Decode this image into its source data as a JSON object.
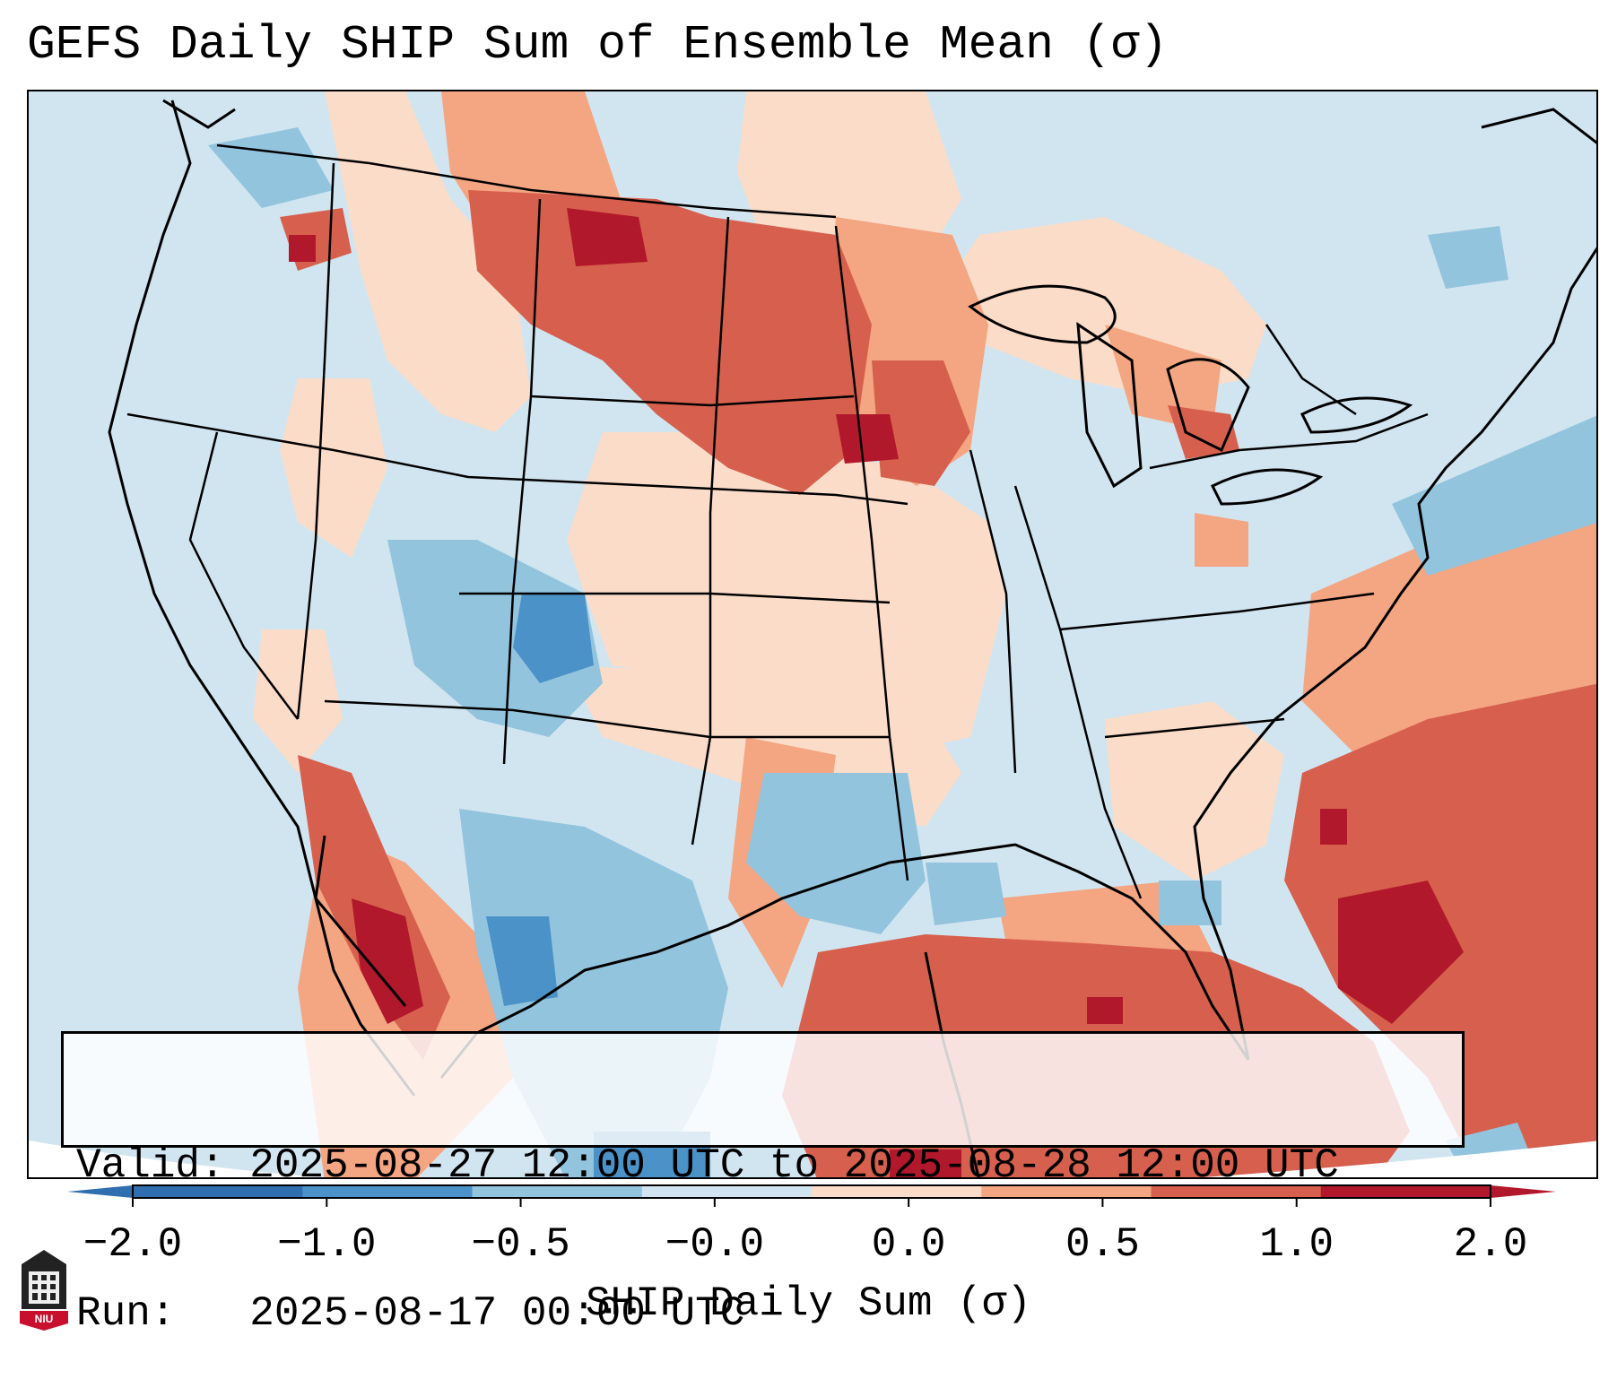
{
  "title": "GEFS Daily SHIP Sum of Ensemble Mean (σ)",
  "info": {
    "valid_line": "Valid: 2025-08-27 12:00 UTC to 2025-08-28 12:00 UTC",
    "run_line": "Run:   2025-08-17 00:00 UTC"
  },
  "colorbar": {
    "label": "SHIP Daily Sum (σ)",
    "ticks": [
      "−2.0",
      "−1.0",
      "−0.5",
      "−0.0",
      "0.0",
      "0.5",
      "1.0",
      "2.0"
    ],
    "colors": [
      "#2f6fb0",
      "#4a92c7",
      "#93c4de",
      "#d1e5f0",
      "#fbdcc8",
      "#f4a582",
      "#d6604d",
      "#b2182b"
    ]
  },
  "map_regions": {
    "strong_positive": [
      "Montana-North Dakota border",
      "Eastern South Dakota / Minnesota",
      "Gulf of Mexico",
      "Southeast Atlantic coast",
      "Gulf of California",
      "Bahamas"
    ],
    "moderate_positive": [
      "Nebraska",
      "Iowa",
      "Missouri",
      "Great Lakes",
      "Western Atlantic"
    ],
    "negative": [
      "Colorado",
      "Utah",
      "New Mexico / West Texas",
      "Northern Mexico",
      "Oklahoma / North Texas",
      "Mid-Atlantic offshore"
    ]
  },
  "logo_text": "NIU"
}
